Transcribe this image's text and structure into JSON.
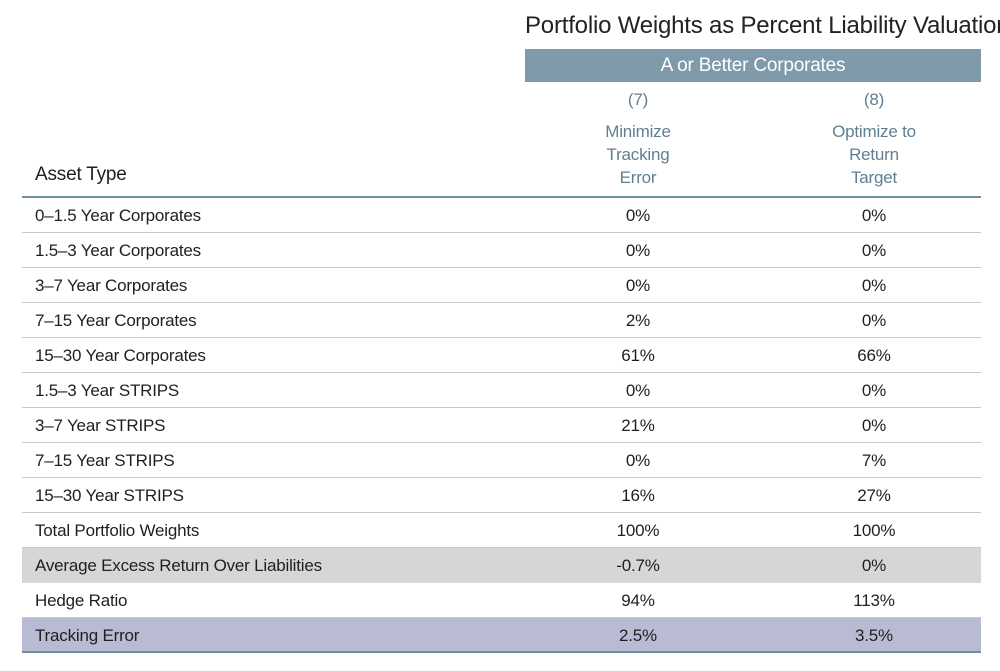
{
  "title": "Portfolio Weights as Percent Liability Valuation",
  "group_header": "A or Better Corporates",
  "row_header": "Asset Type",
  "columns": [
    {
      "number": "(7)",
      "label_lines": [
        "Minimize",
        "Tracking",
        "Error"
      ]
    },
    {
      "number": "(8)",
      "label_lines": [
        "Optimize to",
        "Return",
        "Target"
      ]
    }
  ],
  "rows": [
    {
      "label": "0–1.5 Year Corporates",
      "values": [
        "0%",
        "0%"
      ]
    },
    {
      "label": "1.5–3 Year Corporates",
      "values": [
        "0%",
        "0%"
      ]
    },
    {
      "label": "3–7 Year Corporates",
      "values": [
        "0%",
        "0%"
      ]
    },
    {
      "label": "7–15 Year Corporates",
      "values": [
        "2%",
        "0%"
      ]
    },
    {
      "label": "15–30 Year Corporates",
      "values": [
        "61%",
        "66%"
      ]
    },
    {
      "label": "1.5–3 Year STRIPS",
      "values": [
        "0%",
        "0%"
      ]
    },
    {
      "label": "3–7 Year STRIPS",
      "values": [
        "21%",
        "0%"
      ]
    },
    {
      "label": "7–15 Year STRIPS",
      "values": [
        "0%",
        "7%"
      ]
    },
    {
      "label": "15–30 Year STRIPS",
      "values": [
        "16%",
        "27%"
      ]
    },
    {
      "label": "Total Portfolio Weights",
      "values": [
        "100%",
        "100%"
      ]
    },
    {
      "label": "Average Excess Return Over Liabilities",
      "values": [
        "-0.7%",
        "0%"
      ]
    },
    {
      "label": "Hedge Ratio",
      "values": [
        "94%",
        "113%"
      ]
    },
    {
      "label": "Tracking Error",
      "values": [
        "2.5%",
        "3.5%"
      ]
    }
  ],
  "colors": {
    "banner": "#7f9aaa",
    "column_header_text": "#5f8092",
    "highlight_gray": "#d6d6d6",
    "highlight_lavender": "#b9bbd4",
    "rule": "#6f8fa2"
  }
}
